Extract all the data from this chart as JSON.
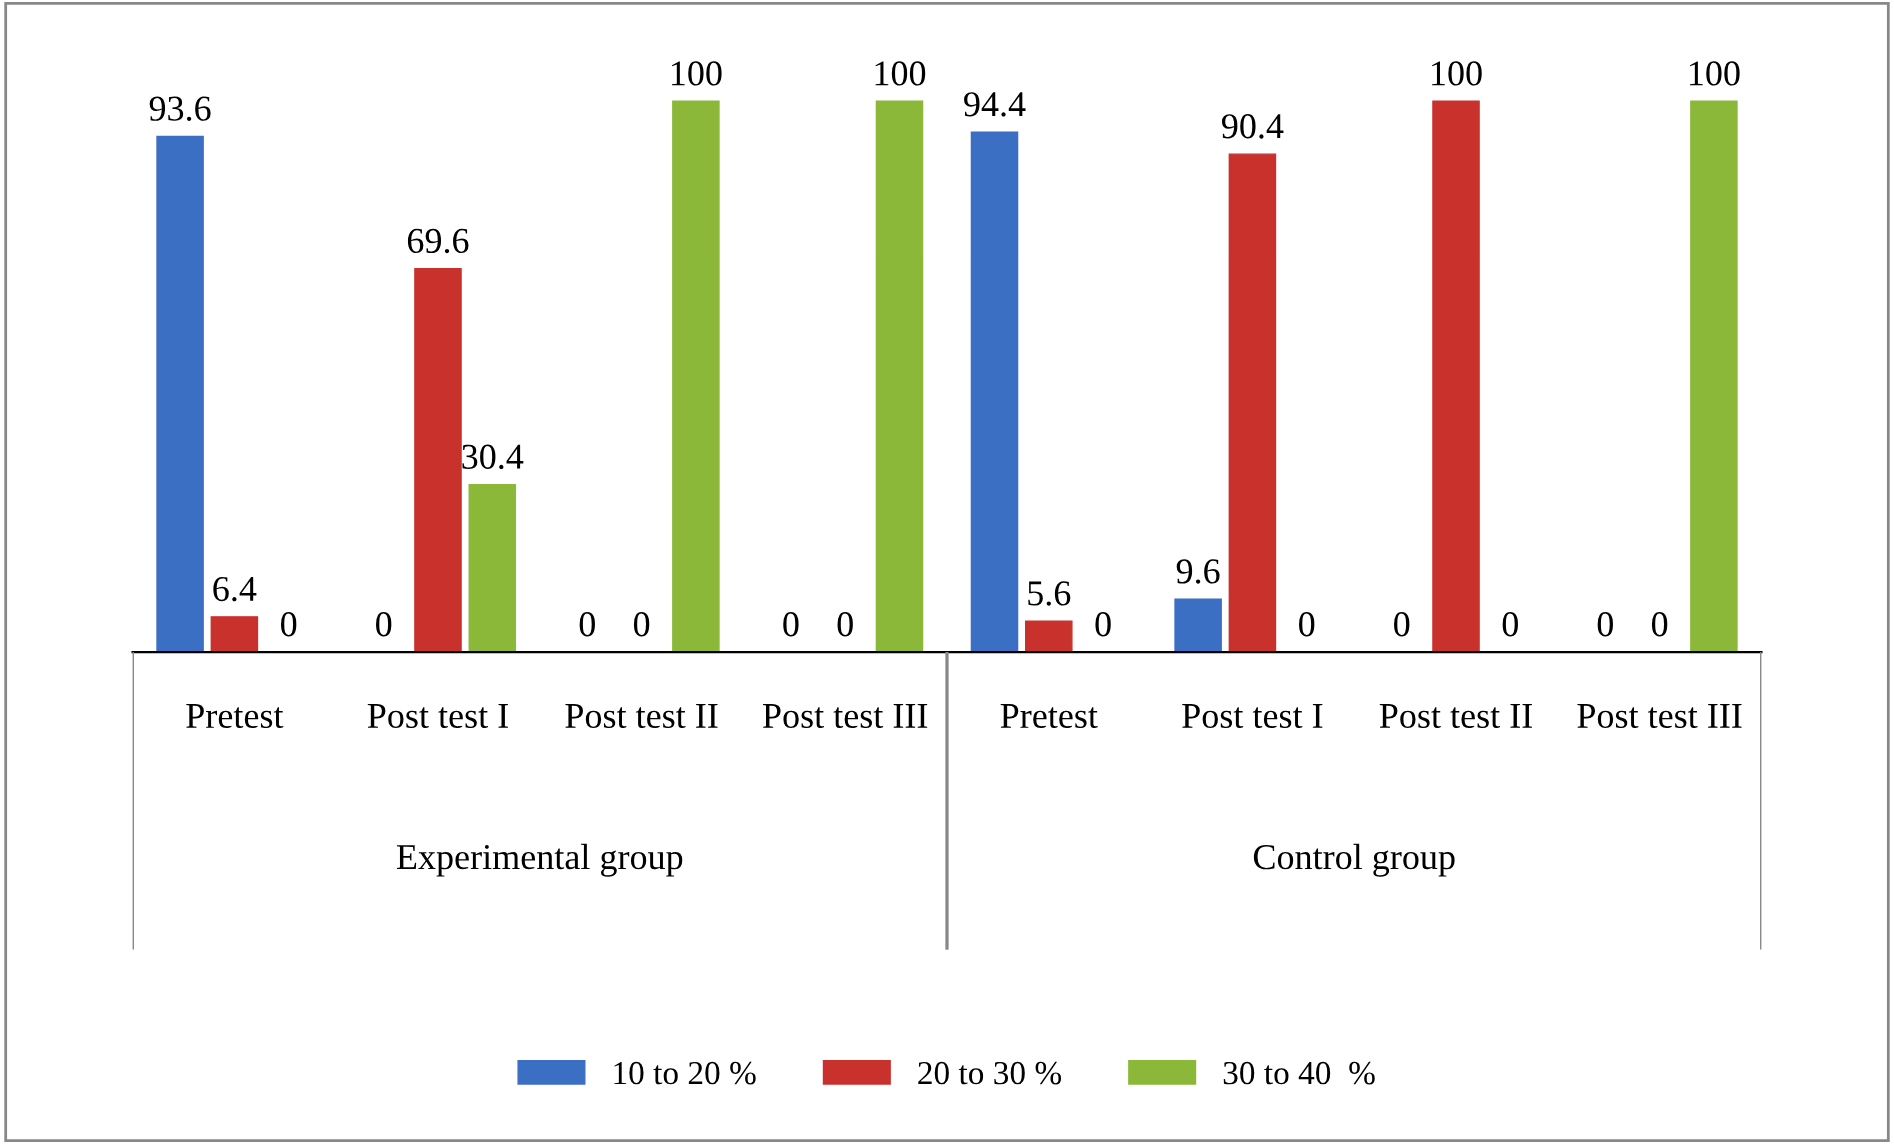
{
  "chart_data": {
    "type": "bar",
    "categories": [
      "Pretest",
      "Post test I",
      "Post test II",
      "Post test III",
      "Pretest",
      "Post test I",
      "Post test II",
      "Post test III"
    ],
    "series": [
      {
        "name": "10 to 20 %",
        "color": "#3a6fc4",
        "values": [
          93.6,
          0,
          0,
          0,
          94.4,
          9.6,
          0,
          0
        ]
      },
      {
        "name": "20 to 30 %",
        "color": "#c9312c",
        "values": [
          6.4,
          69.6,
          0,
          0,
          5.6,
          90.4,
          100,
          0
        ]
      },
      {
        "name": "30 to 40  %",
        "color": "#8cb83a",
        "values": [
          0,
          30.4,
          100,
          100,
          0,
          0,
          0,
          100
        ]
      }
    ],
    "annotations": [
      "Experimental group",
      "Control group"
    ],
    "data_labels": true,
    "legend": "bottom"
  }
}
